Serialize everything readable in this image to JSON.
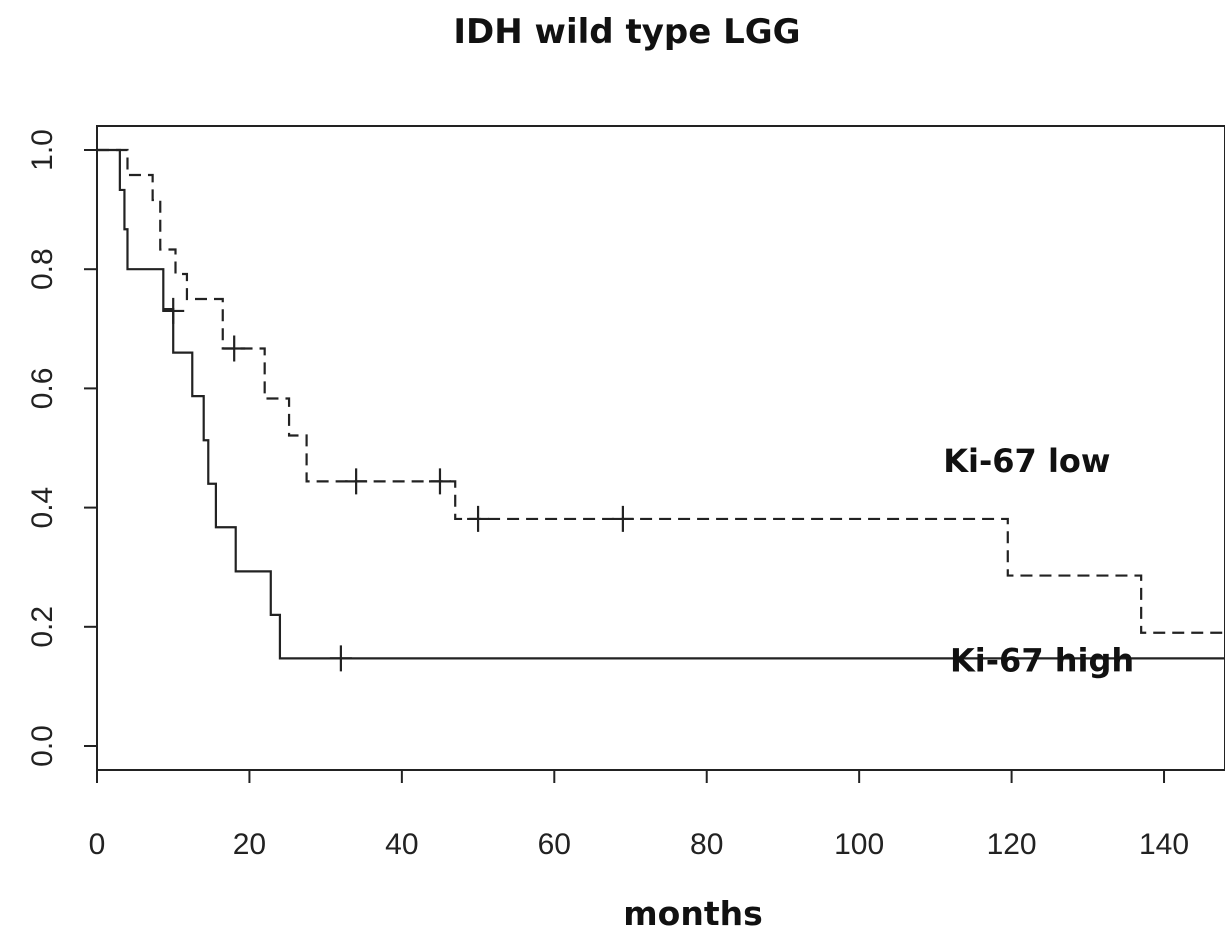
{
  "chart_data": {
    "type": "line",
    "title": "IDH wild type LGG",
    "xlabel": "months",
    "ylabel": "",
    "xlim": [
      0,
      148
    ],
    "ylim": [
      0,
      1.04
    ],
    "x_ticks": [
      0,
      20,
      40,
      60,
      80,
      100,
      120,
      140
    ],
    "y_ticks": [
      0.0,
      0.2,
      0.4,
      0.6,
      0.8,
      1.0
    ],
    "x_tick_labels": [
      "0",
      "20",
      "40",
      "60",
      "80",
      "100",
      "120",
      "140"
    ],
    "y_tick_labels": [
      "0.0",
      "0.2",
      "0.4",
      "0.6",
      "0.8",
      "1.0"
    ],
    "grid": false,
    "series": [
      {
        "name": "Ki-67 low",
        "style": "dashed",
        "color": "#222222",
        "steps": [
          [
            0,
            1.0
          ],
          [
            4,
            0.958
          ],
          [
            7.3,
            0.916
          ],
          [
            8.3,
            0.833
          ],
          [
            10.3,
            0.792
          ],
          [
            11.8,
            0.75
          ],
          [
            16.5,
            0.667
          ],
          [
            22,
            0.583
          ],
          [
            25.2,
            0.521
          ],
          [
            27.5,
            0.444
          ],
          [
            47,
            0.381
          ],
          [
            119.5,
            0.286
          ],
          [
            137,
            0.19
          ],
          [
            148,
            0.19
          ]
        ],
        "censored": [
          [
            10,
            0.73
          ],
          [
            18,
            0.667
          ],
          [
            34,
            0.444
          ],
          [
            45,
            0.444
          ],
          [
            50,
            0.381
          ],
          [
            69,
            0.381
          ]
        ]
      },
      {
        "name": "Ki-67 high",
        "style": "solid",
        "color": "#222222",
        "steps": [
          [
            0,
            1.0
          ],
          [
            3,
            0.933
          ],
          [
            3.6,
            0.867
          ],
          [
            4,
            0.8
          ],
          [
            8.7,
            0.733
          ],
          [
            10,
            0.66
          ],
          [
            12.5,
            0.587
          ],
          [
            14,
            0.513
          ],
          [
            14.6,
            0.44
          ],
          [
            15.6,
            0.367
          ],
          [
            18.2,
            0.293
          ],
          [
            22.8,
            0.22
          ],
          [
            24,
            0.147
          ],
          [
            148,
            0.147
          ]
        ],
        "censored": [
          [
            32,
            0.147
          ]
        ]
      }
    ],
    "annotations": [
      {
        "text": "Ki-67 low",
        "x": 122,
        "y": 0.46
      },
      {
        "text": "Ki-67 high",
        "x": 124,
        "y": 0.125
      }
    ]
  }
}
